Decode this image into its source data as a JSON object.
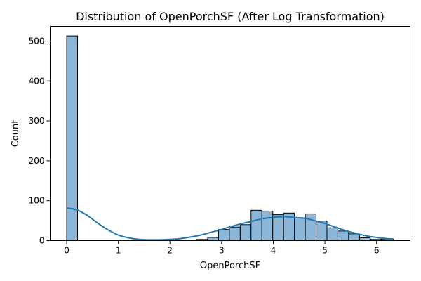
{
  "chart_data": {
    "type": "histogram",
    "title": "Distribution of OpenPorchSF (After Log Transformation)",
    "xlabel": "OpenPorchSF",
    "ylabel": "Count",
    "xlim": [
      -0.32,
      6.65
    ],
    "ylim": [
      0,
      537
    ],
    "x_ticks": [
      0,
      1,
      2,
      3,
      4,
      5,
      6
    ],
    "x_tick_labels": [
      "0",
      "1",
      "2",
      "3",
      "4",
      "5",
      "6"
    ],
    "y_ticks": [
      0,
      100,
      200,
      300,
      400,
      500
    ],
    "y_tick_labels": [
      "0",
      "100",
      "200",
      "300",
      "400",
      "500"
    ],
    "grid": false,
    "bar_color": "#8cb6d8",
    "bar_edge_color": "#000000",
    "kde_color": "#1f77b4",
    "bins": [
      {
        "x0": 0.0,
        "x1": 0.21,
        "count": 513
      },
      {
        "x0": 0.21,
        "x1": 0.42,
        "count": 0
      },
      {
        "x0": 0.42,
        "x1": 0.63,
        "count": 0
      },
      {
        "x0": 0.63,
        "x1": 0.84,
        "count": 0
      },
      {
        "x0": 0.84,
        "x1": 1.05,
        "count": 0
      },
      {
        "x0": 1.05,
        "x1": 1.26,
        "count": 0
      },
      {
        "x0": 1.26,
        "x1": 1.47,
        "count": 0
      },
      {
        "x0": 1.47,
        "x1": 1.68,
        "count": 0
      },
      {
        "x0": 1.68,
        "x1": 1.89,
        "count": 0
      },
      {
        "x0": 1.89,
        "x1": 2.1,
        "count": 0
      },
      {
        "x0": 2.1,
        "x1": 2.31,
        "count": 1
      },
      {
        "x0": 2.31,
        "x1": 2.52,
        "count": 0
      },
      {
        "x0": 2.52,
        "x1": 2.73,
        "count": 3
      },
      {
        "x0": 2.73,
        "x1": 2.94,
        "count": 8
      },
      {
        "x0": 2.94,
        "x1": 3.15,
        "count": 28
      },
      {
        "x0": 3.15,
        "x1": 3.36,
        "count": 34
      },
      {
        "x0": 3.36,
        "x1": 3.57,
        "count": 40
      },
      {
        "x0": 3.57,
        "x1": 3.78,
        "count": 76
      },
      {
        "x0": 3.78,
        "x1": 3.99,
        "count": 74
      },
      {
        "x0": 3.99,
        "x1": 4.2,
        "count": 65
      },
      {
        "x0": 4.2,
        "x1": 4.41,
        "count": 69
      },
      {
        "x0": 4.41,
        "x1": 4.62,
        "count": 57
      },
      {
        "x0": 4.62,
        "x1": 4.83,
        "count": 67
      },
      {
        "x0": 4.83,
        "x1": 5.04,
        "count": 49
      },
      {
        "x0": 5.04,
        "x1": 5.25,
        "count": 32
      },
      {
        "x0": 5.25,
        "x1": 5.46,
        "count": 24
      },
      {
        "x0": 5.46,
        "x1": 5.67,
        "count": 17
      },
      {
        "x0": 5.67,
        "x1": 5.88,
        "count": 7
      },
      {
        "x0": 5.88,
        "x1": 6.09,
        "count": 3
      },
      {
        "x0": 6.09,
        "x1": 6.33,
        "count": 4
      }
    ],
    "kde": {
      "x": [
        0.0,
        0.2,
        0.4,
        0.6,
        0.8,
        1.0,
        1.2,
        1.4,
        1.6,
        1.8,
        2.0,
        2.2,
        2.4,
        2.6,
        2.8,
        3.0,
        3.2,
        3.4,
        3.6,
        3.8,
        4.0,
        4.2,
        4.4,
        4.6,
        4.8,
        5.0,
        5.2,
        5.4,
        5.6,
        5.8,
        6.0,
        6.2,
        6.33
      ],
      "y": [
        82,
        77,
        63,
        44,
        27,
        14,
        7,
        3,
        2,
        2,
        3,
        5,
        9,
        14,
        21,
        28,
        36,
        43,
        49,
        55,
        58,
        60,
        58,
        56,
        50,
        43,
        34,
        25,
        18,
        12,
        8,
        5,
        4
      ]
    }
  }
}
